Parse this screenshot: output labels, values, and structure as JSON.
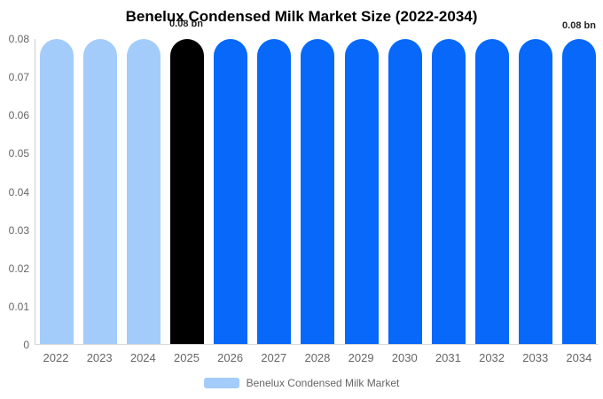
{
  "title": "Benelux Condensed Milk Market Size (2022-2034)",
  "annotations": {
    "base_year_label": "0.08 bn",
    "final_year_label": "0.08 bn"
  },
  "legend": {
    "label": "Benelux Condensed Milk Market"
  },
  "colors": {
    "historical": "#A3CCFA",
    "base_year": "#000000",
    "forecast": "#0768FA",
    "axis_line": "#CCCCCC",
    "tick_text": "#666666",
    "legend_swatch": "#A3CCFA"
  },
  "chart_data": {
    "type": "bar",
    "title": "Benelux Condensed Milk Market Size (2022-2034)",
    "categories": [
      "2022",
      "2023",
      "2024",
      "2025",
      "2026",
      "2027",
      "2028",
      "2029",
      "2030",
      "2031",
      "2032",
      "2033",
      "2034"
    ],
    "series": [
      {
        "name": "Benelux Condensed Milk Market",
        "values": [
          0.08,
          0.08,
          0.08,
          0.08,
          0.08,
          0.08,
          0.08,
          0.08,
          0.08,
          0.08,
          0.08,
          0.08,
          0.08
        ]
      }
    ],
    "point_color_roles": [
      "historical",
      "historical",
      "historical",
      "base_year",
      "forecast",
      "forecast",
      "forecast",
      "forecast",
      "forecast",
      "forecast",
      "forecast",
      "forecast",
      "forecast"
    ],
    "data_labels": [
      {
        "category": "2025",
        "text": "0.08 bn"
      },
      {
        "category": "2034",
        "text": "0.08 bn"
      }
    ],
    "xlabel": "",
    "ylabel": "",
    "ylim": [
      0,
      0.08
    ],
    "y_ticks": [
      "0.08",
      "0.07",
      "0.06",
      "0.05",
      "0.04",
      "0.03",
      "0.02",
      "0.01",
      "0"
    ],
    "grid": false,
    "legend_position": "bottom"
  }
}
